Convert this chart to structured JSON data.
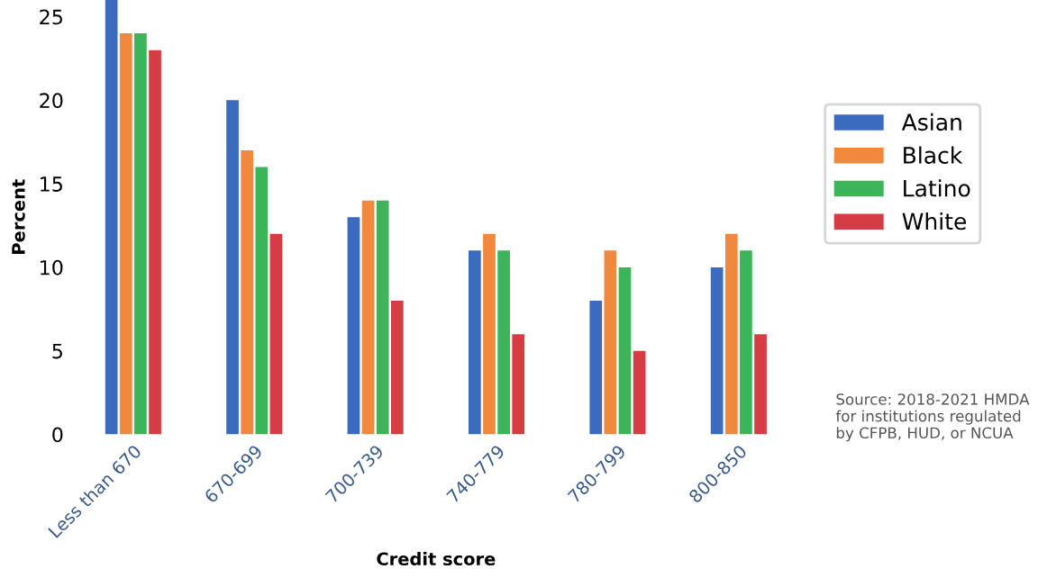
{
  "chart_data": {
    "type": "bar",
    "xlabel": "Credit score",
    "ylabel": "Percent",
    "categories": [
      "Less than 670",
      "670-699",
      "700-739",
      "740-779",
      "780-799",
      "800-850"
    ],
    "series": [
      {
        "name": "Asian",
        "color": "#3a6bbf",
        "values": [
          26,
          20,
          13,
          11,
          8,
          10
        ]
      },
      {
        "name": "Black",
        "color": "#f0883e",
        "values": [
          24,
          17,
          14,
          12,
          11,
          12
        ]
      },
      {
        "name": "Latino",
        "color": "#3cb55a",
        "values": [
          24,
          16,
          14,
          11,
          10,
          11
        ]
      },
      {
        "name": "White",
        "color": "#d63c44",
        "values": [
          23,
          12,
          8,
          6,
          5,
          6
        ]
      }
    ],
    "ylim": [
      0,
      26
    ],
    "yticks": [
      0,
      5,
      10,
      15,
      20,
      25
    ],
    "grid": false,
    "legend": "right",
    "annotations": [
      "Source: 2018-2021 HMDA for institutions regulated by CFPB, HUD, or NCUA"
    ]
  }
}
